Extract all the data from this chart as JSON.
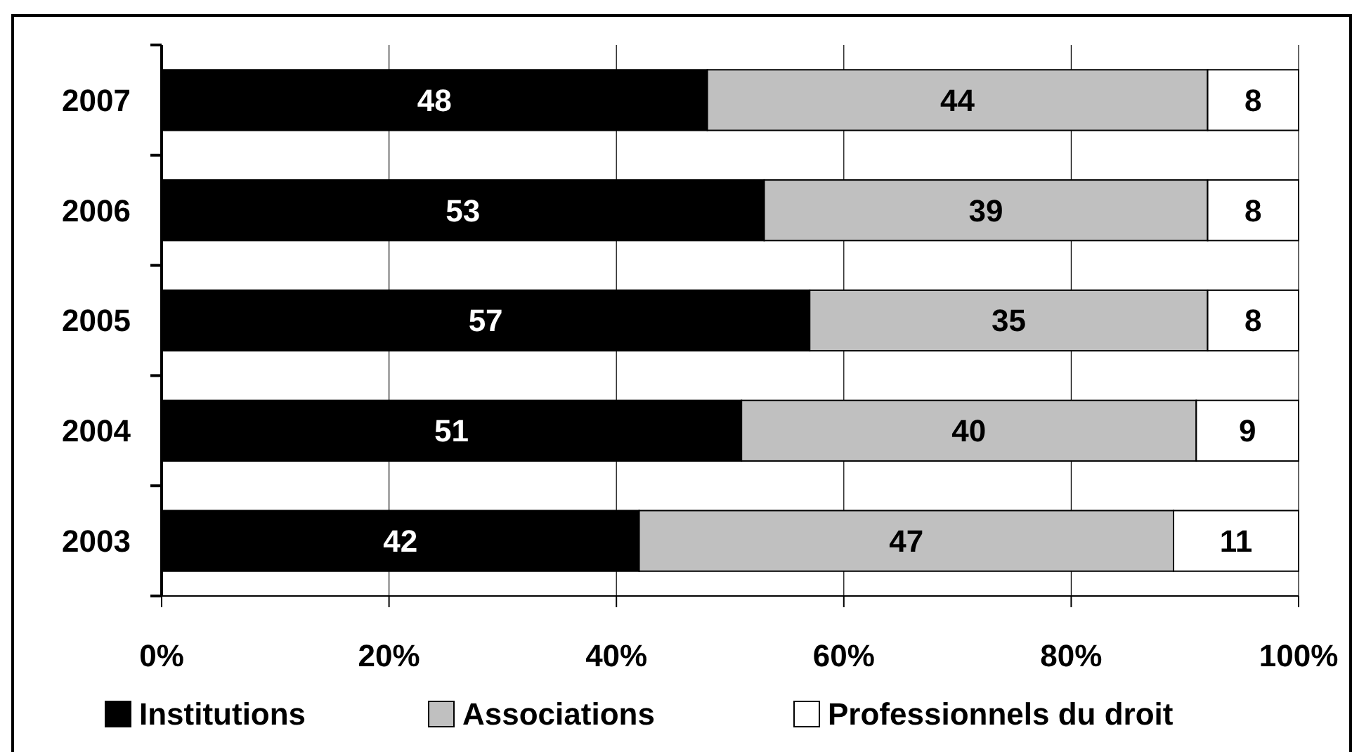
{
  "chart_data": {
    "type": "bar",
    "orientation": "horizontal",
    "stacked": true,
    "categories": [
      "2007",
      "2006",
      "2005",
      "2004",
      "2003"
    ],
    "series": [
      {
        "name": "Institutions",
        "color": "#000000",
        "values": [
          48,
          53,
          57,
          51,
          42
        ]
      },
      {
        "name": "Associations",
        "color": "#c0c0c0",
        "values": [
          44,
          39,
          35,
          40,
          47
        ]
      },
      {
        "name": "Professionnels du droit",
        "color": "#ffffff",
        "values": [
          8,
          8,
          8,
          9,
          11
        ]
      }
    ],
    "xlim": [
      0,
      100
    ],
    "xticks": [
      {
        "value": 0,
        "label": "0%"
      },
      {
        "value": 20,
        "label": "20%"
      },
      {
        "value": 40,
        "label": "40%"
      },
      {
        "value": 60,
        "label": "60%"
      },
      {
        "value": 80,
        "label": "80%"
      },
      {
        "value": 100,
        "label": "100%"
      }
    ],
    "grid": "x",
    "data_labels": true,
    "legend": "bottom"
  }
}
